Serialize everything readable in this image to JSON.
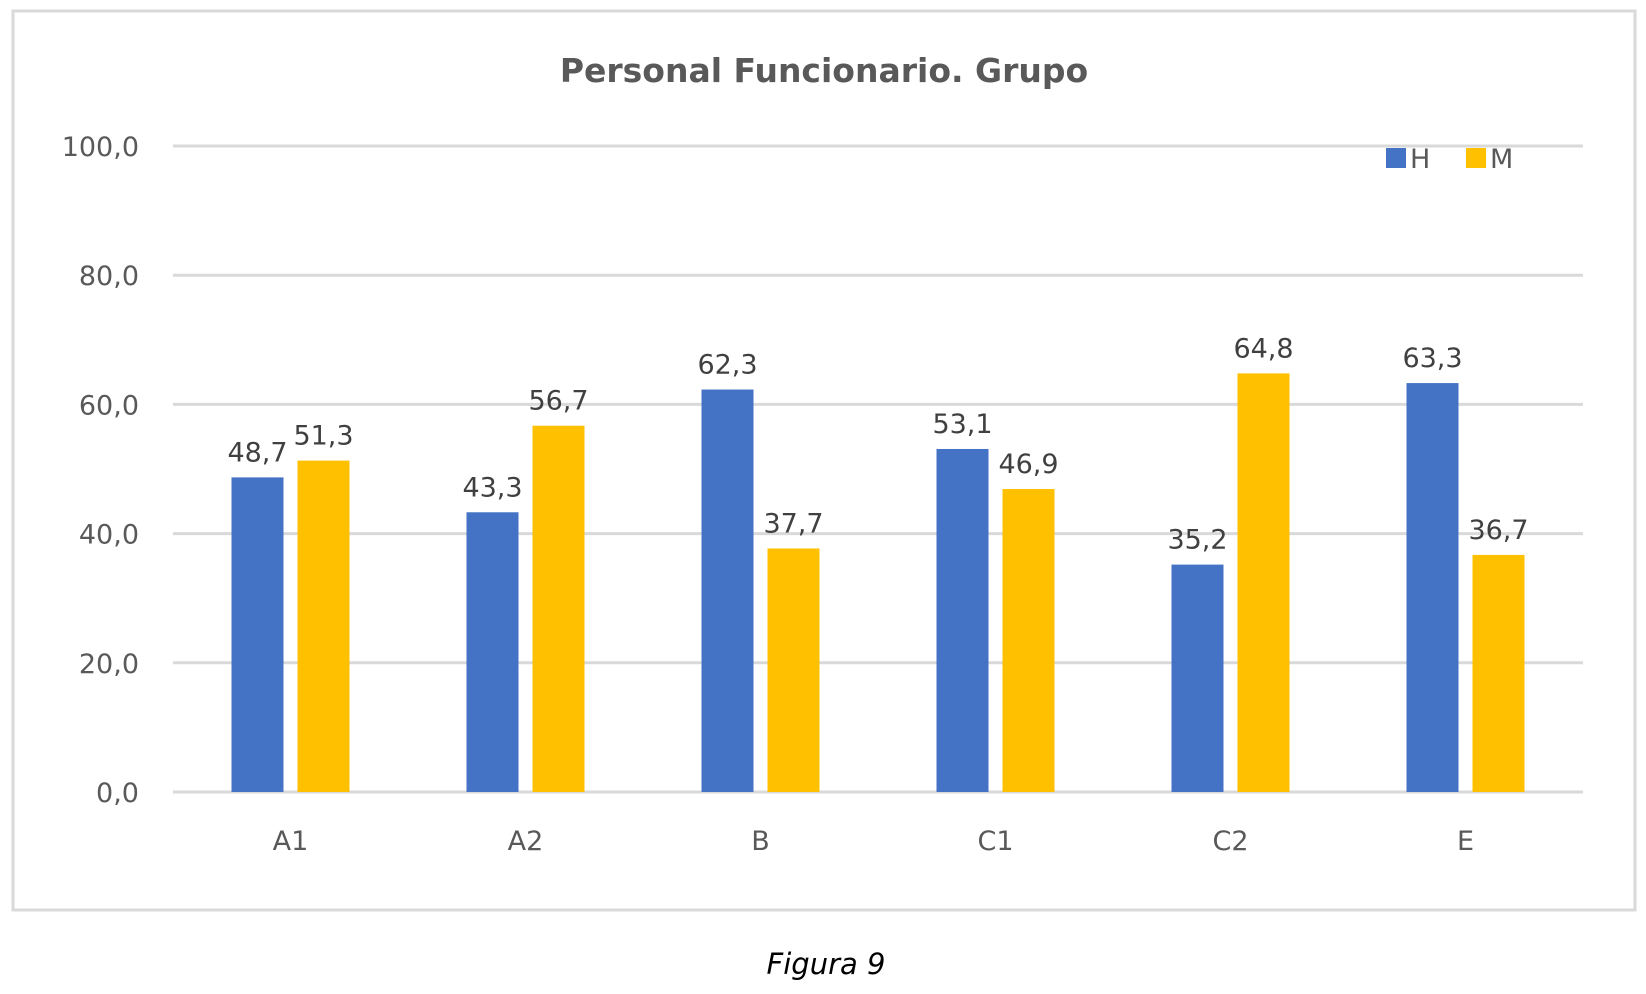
{
  "chart_data": {
    "type": "bar",
    "title": "Personal Funcionario. Grupo",
    "categories": [
      "A1",
      "A2",
      "B",
      "C1",
      "C2",
      "E"
    ],
    "series": [
      {
        "name": "H",
        "color": "#4472c4",
        "values": [
          48.7,
          43.3,
          62.3,
          53.1,
          35.2,
          63.3
        ],
        "labels": [
          "48,7",
          "43,3",
          "62,3",
          "53,1",
          "35,2",
          "63,3"
        ]
      },
      {
        "name": "M",
        "color": "#ffc000",
        "values": [
          51.3,
          56.7,
          37.7,
          46.9,
          64.8,
          36.7
        ],
        "labels": [
          "51,3",
          "56,7",
          "37,7",
          "46,9",
          "64,8",
          "36,7"
        ]
      }
    ],
    "ylim": [
      0,
      100
    ],
    "yticks": [
      0,
      20,
      40,
      60,
      80,
      100
    ],
    "ytick_labels": [
      "0,0",
      "20,0",
      "40,0",
      "60,0",
      "80,0",
      "100,0"
    ],
    "xlabel": "",
    "ylabel": "",
    "grid": true,
    "legend_position": "top-right"
  },
  "caption": "Figura 9"
}
